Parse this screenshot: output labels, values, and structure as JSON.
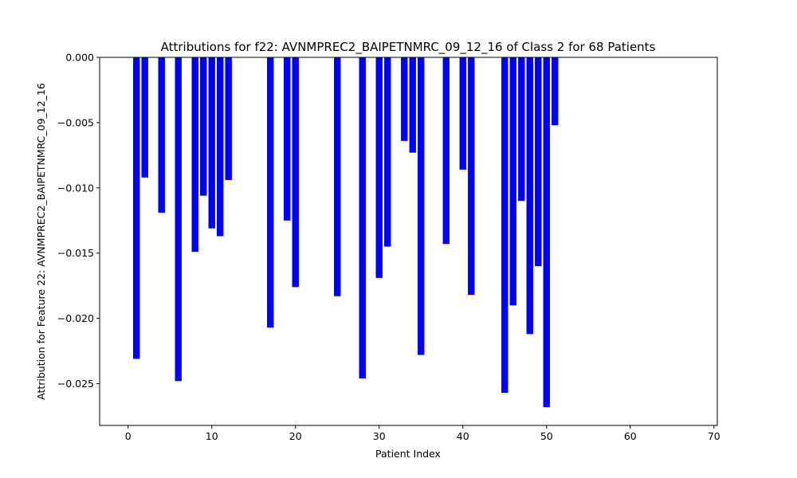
{
  "chart_data": {
    "type": "bar",
    "title": "Attributions for f22: AVNMPREC2_BAIPETNMRC_09_12_16 of Class 2 for 68 Patients",
    "xlabel": "Patient Index",
    "ylabel": "Attribution for Feature 22: AVNMPREC2_BAIPETNMRC_09_12_16",
    "xlim": [
      -3.4,
      70.4
    ],
    "ylim": [
      -0.0282,
      0.0
    ],
    "xticks": [
      0,
      10,
      20,
      30,
      40,
      50,
      60,
      70
    ],
    "yticks": [
      0.0,
      -0.005,
      -0.01,
      -0.015,
      -0.02,
      -0.025
    ],
    "ytick_labels": [
      "0.000",
      "−0.005",
      "−0.010",
      "−0.015",
      "−0.020",
      "−0.025"
    ],
    "bar_color": "#0000ff",
    "grid": false,
    "x": [
      1,
      2,
      4,
      6,
      8,
      9,
      10,
      11,
      12,
      17,
      19,
      20,
      25,
      28,
      30,
      31,
      33,
      34,
      35,
      38,
      40,
      41,
      45,
      46,
      47,
      48,
      49,
      50,
      51
    ],
    "values": [
      -0.0231,
      -0.0092,
      -0.0119,
      -0.0248,
      -0.0149,
      -0.0106,
      -0.0131,
      -0.0137,
      -0.0094,
      -0.0207,
      -0.0125,
      -0.0176,
      -0.0183,
      -0.0246,
      -0.0169,
      -0.0145,
      -0.0064,
      -0.0073,
      -0.0228,
      -0.0143,
      -0.0086,
      -0.0182,
      -0.0257,
      -0.019,
      -0.011,
      -0.0212,
      -0.016,
      -0.0268,
      -0.0052
    ]
  }
}
